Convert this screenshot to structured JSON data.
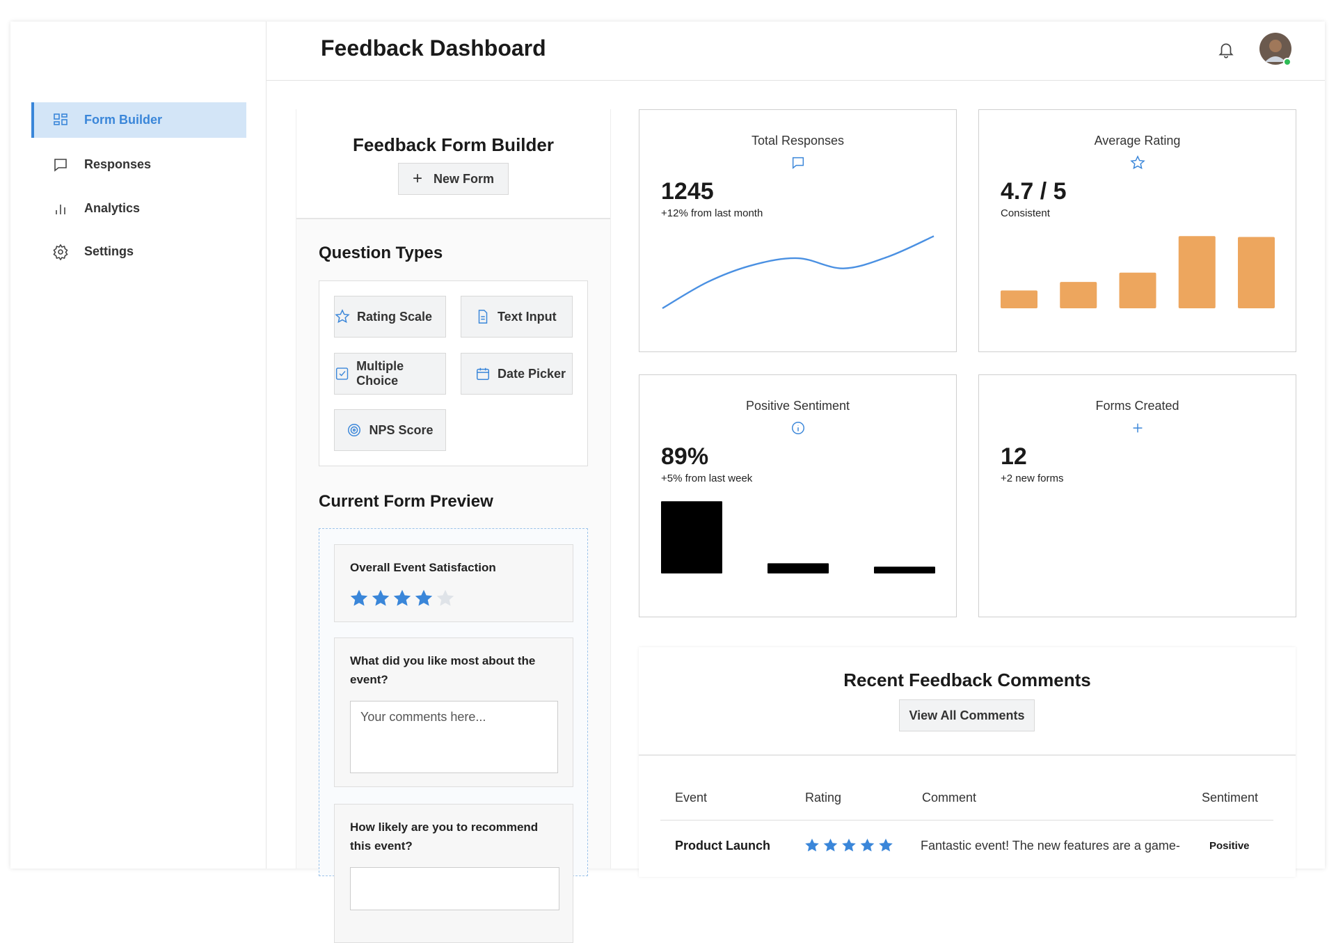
{
  "header": {
    "title": "Feedback Dashboard"
  },
  "nav": [
    {
      "label": "Form Builder",
      "active": true
    },
    {
      "label": "Responses",
      "active": false
    },
    {
      "label": "Analytics",
      "active": false
    },
    {
      "label": "Settings",
      "active": false
    }
  ],
  "builder": {
    "title": "Feedback Form Builder",
    "new_form_button": "New Form"
  },
  "question_types": {
    "title": "Question Types",
    "items": [
      "Rating Scale",
      "Text Input",
      "Multiple Choice",
      "Date Picker",
      "NPS Score"
    ]
  },
  "preview": {
    "title": "Current Form Preview",
    "questions": [
      {
        "label": "Overall Event Satisfaction",
        "rating": 4,
        "max": 5
      },
      {
        "label": "What did you like most about the event?",
        "placeholder": "Your comments here..."
      },
      {
        "label": "How likely are you to recommend this event?"
      }
    ]
  },
  "stats": [
    {
      "title": "Total Responses",
      "value": "1245",
      "subtitle": "+12% from last month",
      "chart": {
        "type": "line",
        "values": [
          0,
          31,
          51,
          59,
          47,
          61,
          85
        ],
        "ylim": [
          0,
          100
        ],
        "color": "#4a90e2"
      }
    },
    {
      "title": "Average Rating",
      "value": "4.7 / 5",
      "subtitle": "Consistent",
      "chart": {
        "type": "bar",
        "values": [
          21,
          31,
          42,
          85,
          84
        ],
        "ylim": [
          0,
          100
        ],
        "color": "#eda65e"
      }
    },
    {
      "title": "Positive Sentiment",
      "value": "89%",
      "subtitle": "+5% from last week",
      "chart": {
        "type": "bar",
        "values": [
          85,
          12,
          8
        ],
        "ylim": [
          0,
          100
        ],
        "color": "#000000"
      }
    },
    {
      "title": "Forms Created",
      "value": "12",
      "subtitle": "+2 new forms"
    }
  ],
  "comments": {
    "title": "Recent Feedback Comments",
    "button": "View All Comments",
    "columns": [
      "Event",
      "Rating",
      "Comment",
      "Sentiment"
    ],
    "rows": [
      {
        "event": "Product Launch",
        "rating": 5,
        "max": 5,
        "comment": "Fantastic event! The new features are a game-",
        "sentiment": "Positive"
      }
    ]
  }
}
